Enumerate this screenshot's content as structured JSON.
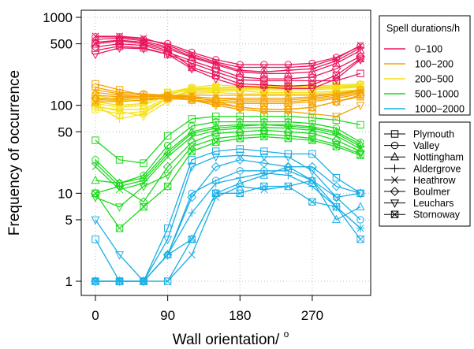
{
  "chart_data": {
    "type": "line",
    "title": "",
    "xlabel": "Wall orientation/",
    "xlabel_superscript": "o",
    "ylabel": "Frequency of occurrence",
    "y_scale": "log",
    "ylim": [
      1,
      1000
    ],
    "xlim": [
      0,
      330
    ],
    "x_ticks": [
      0,
      90,
      180,
      270
    ],
    "y_ticks": [
      1,
      5,
      10,
      50,
      100,
      500,
      1000
    ],
    "grid": true,
    "x": [
      0,
      30,
      60,
      90,
      120,
      150,
      180,
      210,
      240,
      270,
      300,
      330
    ],
    "color_legend": {
      "title": "Spell durations/h",
      "position": "top-right",
      "entries": [
        {
          "label": "0−100",
          "color": "#e8175d"
        },
        {
          "label": "100−200",
          "color": "#f5a300"
        },
        {
          "label": "200−500",
          "color": "#f5e11b"
        },
        {
          "label": "500−1000",
          "color": "#1ed81e"
        },
        {
          "label": "1000−2000",
          "color": "#1aaee5"
        }
      ]
    },
    "marker_legend": {
      "position": "right",
      "entries": [
        {
          "label": "Plymouth",
          "marker": "square"
        },
        {
          "label": "Valley",
          "marker": "circle"
        },
        {
          "label": "Nottingham",
          "marker": "triangle"
        },
        {
          "label": "Aldergrove",
          "marker": "plus"
        },
        {
          "label": "Heathrow",
          "marker": "cross"
        },
        {
          "label": "Boulmer",
          "marker": "diamond"
        },
        {
          "label": "Leuchars",
          "marker": "triangle-down"
        },
        {
          "label": "Stornoway",
          "marker": "square-x"
        }
      ]
    },
    "groups": [
      {
        "duration": "0−100",
        "color": "#e8175d",
        "series": [
          {
            "site": "Plymouth",
            "values": [
              420,
              470,
              450,
              380,
              300,
              240,
              195,
              190,
              190,
              190,
              190,
              230
            ]
          },
          {
            "site": "Valley",
            "values": [
              600,
              600,
              560,
              500,
              400,
              330,
              290,
              290,
              290,
              300,
              350,
              470
            ]
          },
          {
            "site": "Nottingham",
            "values": [
              520,
              550,
              520,
              440,
              350,
              290,
              240,
              230,
              230,
              240,
              300,
              420
            ]
          },
          {
            "site": "Aldergrove",
            "values": [
              560,
              580,
              540,
              460,
              360,
              300,
              250,
              240,
              250,
              260,
              320,
              450
            ]
          },
          {
            "site": "Heathrow",
            "values": [
              610,
              610,
              580,
              480,
              380,
              310,
              270,
              270,
              270,
              280,
              340,
              480
            ]
          },
          {
            "site": "Boulmer",
            "values": [
              460,
              500,
              480,
              400,
              320,
              260,
              210,
              200,
              200,
              210,
              260,
              360
            ]
          },
          {
            "site": "Leuchars",
            "values": [
              380,
              450,
              440,
              380,
              260,
              200,
              165,
              160,
              155,
              155,
              200,
              330
            ]
          },
          {
            "site": "Stornoway",
            "values": [
              500,
              540,
              500,
              420,
              270,
              220,
              175,
              170,
              165,
              170,
              220,
              340
            ]
          }
        ]
      },
      {
        "duration": "100−200",
        "color": "#f5a300",
        "series": [
          {
            "site": "Plymouth",
            "values": [
              175,
              150,
              130,
              125,
              115,
              110,
              105,
              105,
              105,
              110,
              120,
              135
            ]
          },
          {
            "site": "Valley",
            "values": [
              160,
              140,
              135,
              130,
              125,
              120,
              120,
              120,
              120,
              125,
              135,
              150
            ]
          },
          {
            "site": "Nottingham",
            "values": [
              140,
              130,
              125,
              125,
              120,
              115,
              110,
              110,
              110,
              115,
              125,
              140
            ]
          },
          {
            "site": "Aldergrove",
            "values": [
              150,
              135,
              130,
              130,
              125,
              120,
              115,
              115,
              115,
              120,
              130,
              145
            ]
          },
          {
            "site": "Heathrow",
            "values": [
              130,
              125,
              125,
              130,
              130,
              130,
              130,
              130,
              130,
              130,
              135,
              145
            ]
          },
          {
            "site": "Boulmer",
            "values": [
              120,
              120,
              125,
              125,
              125,
              110,
              95,
              90,
              90,
              95,
              110,
              130
            ]
          },
          {
            "site": "Leuchars",
            "values": [
              115,
              115,
              120,
              120,
              115,
              100,
              90,
              85,
              85,
              80,
              75,
              100
            ]
          },
          {
            "site": "Stornoway",
            "values": [
              110,
              110,
              115,
              120,
              115,
              105,
              95,
              90,
              90,
              95,
              110,
              125
            ]
          }
        ]
      },
      {
        "duration": "200−500",
        "color": "#f5e11b",
        "series": [
          {
            "site": "Plymouth",
            "values": [
              90,
              80,
              85,
              120,
              150,
              160,
              160,
              160,
              160,
              160,
              165,
              170
            ]
          },
          {
            "site": "Valley",
            "values": [
              120,
              110,
              115,
              140,
              160,
              170,
              165,
              165,
              165,
              165,
              170,
              175
            ]
          },
          {
            "site": "Nottingham",
            "values": [
              105,
              95,
              100,
              130,
              155,
              160,
              160,
              160,
              160,
              160,
              160,
              165
            ]
          },
          {
            "site": "Aldergrove",
            "values": [
              100,
              70,
              80,
              120,
              145,
              150,
              150,
              150,
              150,
              150,
              155,
              160
            ]
          },
          {
            "site": "Heathrow",
            "values": [
              110,
              100,
              105,
              135,
              150,
              155,
              150,
              150,
              150,
              150,
              155,
              165
            ]
          },
          {
            "site": "Boulmer",
            "values": [
              95,
              90,
              90,
              125,
              140,
              145,
              145,
              140,
              140,
              140,
              145,
              150
            ]
          },
          {
            "site": "Leuchars",
            "values": [
              100,
              85,
              75,
              110,
              135,
              140,
              135,
              135,
              135,
              135,
              140,
              150
            ]
          },
          {
            "site": "Stornoway",
            "values": [
              130,
              115,
              110,
              140,
              155,
              160,
              155,
              155,
              155,
              155,
              160,
              170
            ]
          }
        ]
      },
      {
        "duration": "500−1000",
        "color": "#1ed81e",
        "series": [
          {
            "site": "Plymouth",
            "values": [
              40,
              24,
              22,
              45,
              70,
              75,
              75,
              75,
              75,
              72,
              68,
              60
            ]
          },
          {
            "site": "Valley",
            "values": [
              24,
              13,
              16,
              35,
              58,
              65,
              65,
              65,
              65,
              62,
              55,
              38
            ]
          },
          {
            "site": "Nottingham",
            "values": [
              14,
              13,
              15,
              30,
              50,
              58,
              60,
              60,
              60,
              57,
              50,
              36
            ]
          },
          {
            "site": "Aldergrove",
            "values": [
              22,
              12,
              14,
              28,
              48,
              55,
              58,
              60,
              58,
              55,
              48,
              34
            ]
          },
          {
            "site": "Heathrow",
            "values": [
              20,
              11,
              13,
              26,
              44,
              52,
              55,
              56,
              55,
              52,
              45,
              32
            ]
          },
          {
            "site": "Boulmer",
            "values": [
              10,
              12,
              8,
              20,
              38,
              48,
              50,
              52,
              50,
              48,
              40,
              30
            ]
          },
          {
            "site": "Leuchars",
            "values": [
              9,
              7,
              12,
              16,
              34,
              42,
              45,
              47,
              45,
              42,
              36,
              28
            ]
          },
          {
            "site": "Stornoway",
            "values": [
              10,
              4,
              7,
              12,
              30,
              38,
              42,
              44,
              42,
              40,
              34,
              27
            ]
          }
        ]
      },
      {
        "duration": "1000−2000",
        "color": "#1aaee5",
        "series": [
          {
            "site": "Plymouth",
            "values": [
              3,
              1,
              1,
              4,
              24,
              30,
              32,
              30,
              28,
              28,
              15,
              10
            ]
          },
          {
            "site": "Valley",
            "values": [
              1,
              1,
              1,
              2,
              10,
              14,
              18,
              18,
              18,
              14,
              9,
              5
            ]
          },
          {
            "site": "Nottingham",
            "values": [
              1,
              1,
              1,
              2,
              3,
              10,
              13,
              16,
              20,
              14,
              5,
              7
            ]
          },
          {
            "site": "Aldergrove",
            "values": [
              1,
              1,
              1,
              2,
              6,
              13,
              15,
              17,
              16,
              12,
              7,
              4
            ]
          },
          {
            "site": "Heathrow",
            "values": [
              1,
              1,
              1,
              1,
              2,
              9,
              12,
              11,
              12,
              14,
              7,
              4
            ]
          },
          {
            "site": "Boulmer",
            "values": [
              1,
              1,
              1,
              2,
              9,
              20,
              24,
              22,
              20,
              20,
              12,
              10
            ]
          },
          {
            "site": "Leuchars",
            "values": [
              5,
              2,
              1,
              3,
              20,
              26,
              27,
              26,
              26,
              18,
              9,
              10
            ]
          },
          {
            "site": "Stornoway",
            "values": [
              1,
              1,
              1,
              1,
              3,
              10,
              10,
              12,
              12,
              8,
              7,
              3
            ]
          }
        ]
      }
    ]
  }
}
